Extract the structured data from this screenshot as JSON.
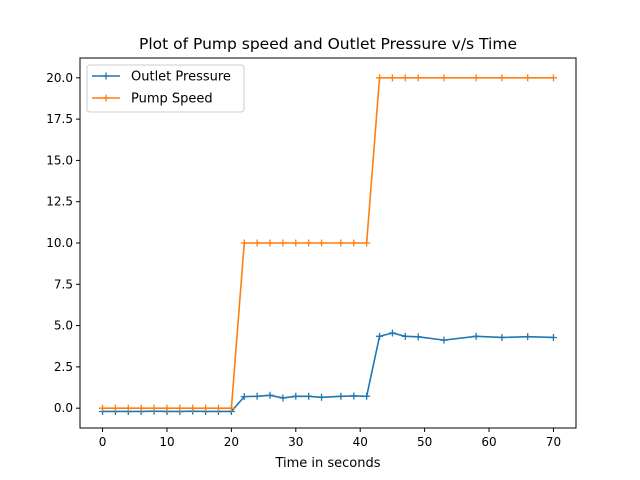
{
  "chart_data": {
    "type": "line",
    "title": "Plot of Pump speed and Outlet Pressure v/s Time",
    "xlabel": "Time in seconds",
    "ylabel": "",
    "xlim": [
      -3.5,
      73.5
    ],
    "ylim": [
      -1.2,
      21.2
    ],
    "xticks": [
      0,
      10,
      20,
      30,
      40,
      50,
      60,
      70
    ],
    "yticks": [
      0.0,
      2.5,
      5.0,
      7.5,
      10.0,
      12.5,
      15.0,
      17.5,
      20.0
    ],
    "xtick_labels": [
      "0",
      "10",
      "20",
      "30",
      "40",
      "50",
      "60",
      "70"
    ],
    "ytick_labels": [
      "0.0",
      "2.5",
      "5.0",
      "7.5",
      "10.0",
      "12.5",
      "15.0",
      "17.5",
      "20.0"
    ],
    "grid": false,
    "legend_position": "top-left",
    "series": [
      {
        "name": "Outlet Pressure",
        "color": "#1f77b4",
        "marker": "plus",
        "x": [
          0,
          2,
          4,
          6,
          8,
          10,
          12,
          14,
          16,
          18,
          20,
          22,
          24,
          26,
          28,
          30,
          32,
          34,
          37,
          39,
          41,
          43,
          45,
          47,
          49,
          53,
          58,
          62,
          66,
          70
        ],
        "y": [
          -0.2,
          -0.2,
          -0.2,
          -0.2,
          -0.18,
          -0.2,
          -0.2,
          -0.18,
          -0.2,
          -0.2,
          -0.2,
          0.7,
          0.72,
          0.78,
          0.62,
          0.72,
          0.72,
          0.66,
          0.72,
          0.74,
          0.72,
          4.35,
          4.55,
          4.35,
          4.32,
          4.12,
          4.35,
          4.28,
          4.33,
          4.28
        ]
      },
      {
        "name": "Pump Speed",
        "color": "#ff7f0e",
        "marker": "plus",
        "x": [
          0,
          2,
          4,
          6,
          8,
          10,
          12,
          14,
          16,
          18,
          20,
          22,
          24,
          26,
          28,
          30,
          32,
          34,
          37,
          39,
          41,
          43,
          45,
          47,
          49,
          53,
          58,
          62,
          66,
          70
        ],
        "y": [
          0,
          0,
          0,
          0,
          0,
          0,
          0,
          0,
          0,
          0,
          0,
          10,
          10,
          10,
          10,
          10,
          10,
          10,
          10,
          10,
          10,
          20,
          20,
          20,
          20,
          20,
          20,
          20,
          20,
          20
        ]
      }
    ]
  }
}
